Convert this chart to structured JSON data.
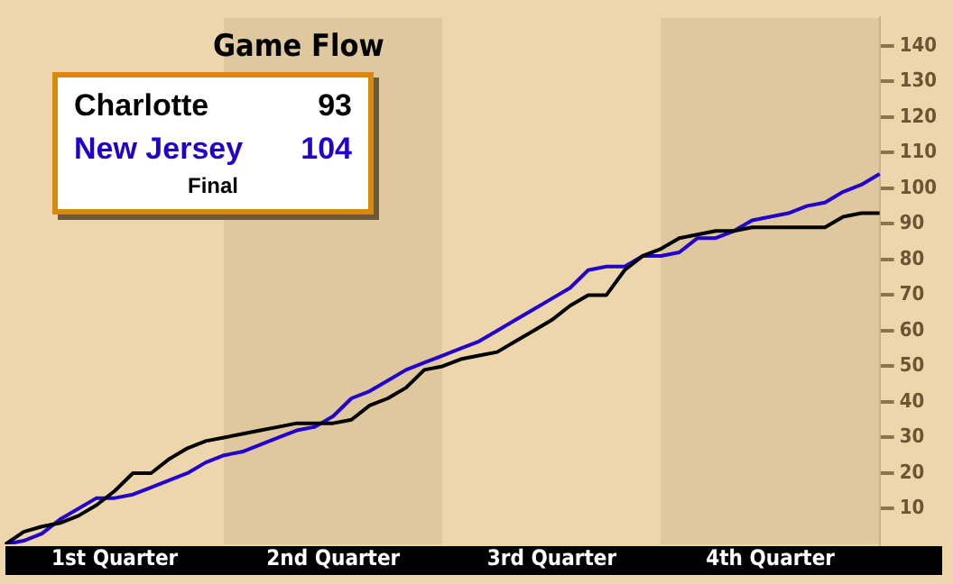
{
  "chart_data": {
    "type": "line",
    "title": "Game Flow",
    "annotations": [
      "93",
      "104",
      "Final",
      "1st Quarter",
      "2nd Quarter",
      "3rd Quarter",
      "4th Quarter"
    ],
    "marker": "none",
    "line_style": "solid",
    "grid": false,
    "tick_labels": "y",
    "categories": [
      null,
      null,
      null,
      null,
      null,
      null,
      null,
      null,
      null,
      null,
      null,
      null,
      null,
      null,
      null,
      null,
      null,
      null,
      null,
      null,
      null,
      null,
      null,
      null,
      null,
      null,
      null,
      null,
      null,
      null,
      null,
      null,
      null,
      null,
      null,
      null,
      null,
      null,
      null,
      null,
      null,
      null,
      null,
      null,
      null,
      null,
      null,
      null,
      null
    ],
    "ylim": [
      0,
      148
    ],
    "yticks": [
      10,
      20,
      30,
      40,
      50,
      60,
      70,
      80,
      90,
      100,
      110,
      120,
      130,
      140
    ],
    "series": [
      {
        "name": "Charlotte",
        "color": "#000000",
        "values": [
          0,
          3.5,
          5,
          6,
          8,
          11,
          15,
          20,
          20,
          24,
          27,
          29,
          30,
          31,
          32,
          33,
          34,
          34,
          34,
          35,
          39,
          41,
          44,
          49,
          50,
          52,
          53,
          54,
          57,
          60,
          63,
          67,
          70,
          70,
          77,
          81,
          83,
          86,
          87,
          88,
          88,
          89,
          89,
          89,
          89,
          89,
          92,
          93,
          93
        ]
      },
      {
        "name": "New Jersey",
        "color": "#2200cc",
        "values": [
          0,
          1,
          3,
          7,
          10,
          13,
          13,
          14,
          16,
          18,
          20,
          23,
          25,
          26,
          28,
          30,
          32,
          33,
          36,
          41,
          43,
          46,
          49,
          51,
          53,
          55,
          57,
          60,
          63,
          66,
          69,
          72,
          77,
          78,
          78,
          81,
          81,
          82,
          86,
          86,
          88,
          91,
          92,
          93,
          95,
          96,
          99,
          101,
          104
        ]
      }
    ]
  }
}
